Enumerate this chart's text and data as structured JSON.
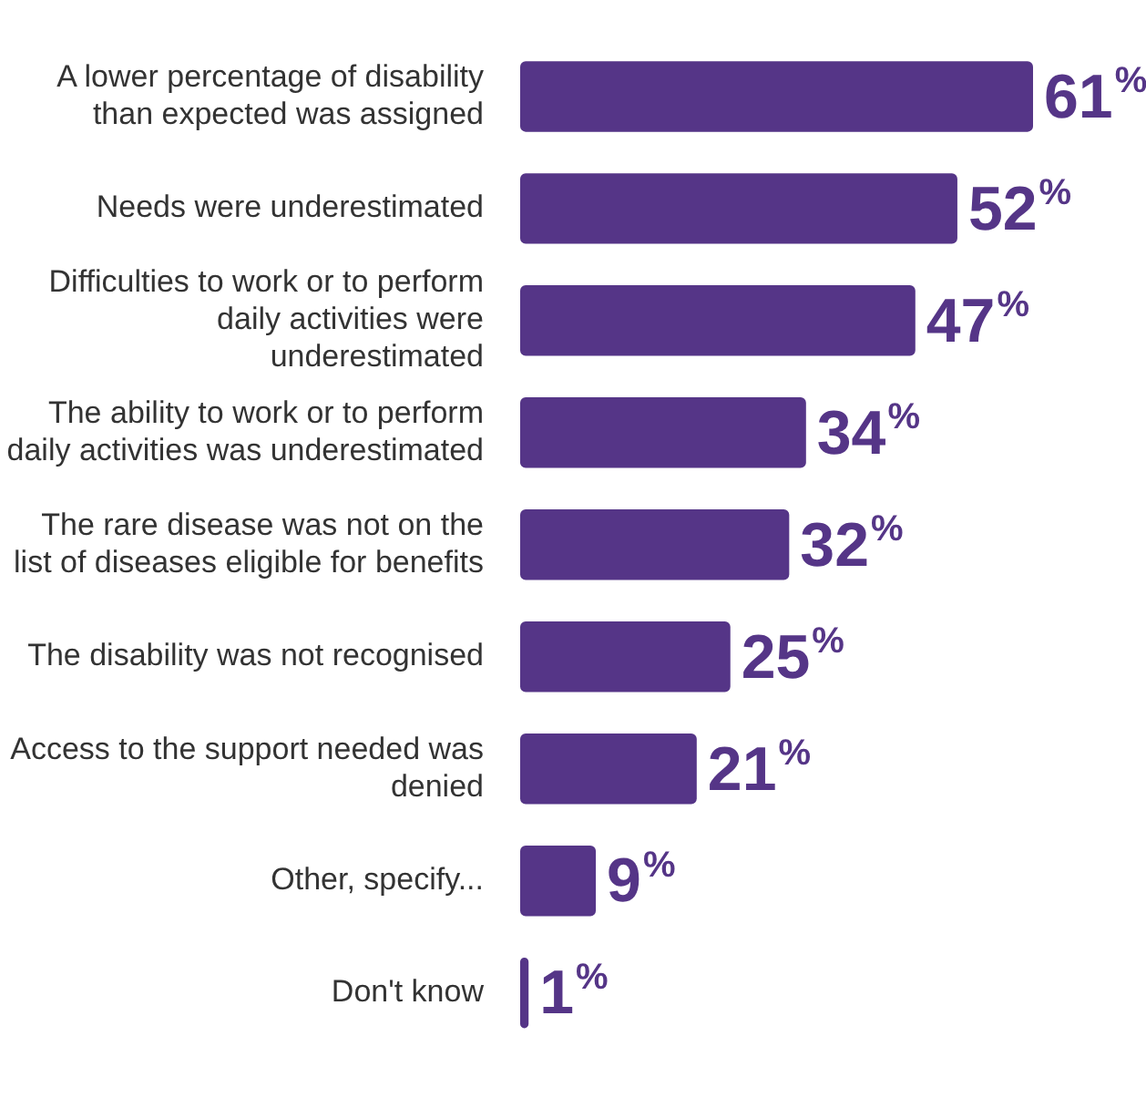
{
  "chart_data": {
    "type": "bar",
    "orientation": "horizontal",
    "categories": [
      "A lower percentage of disability than expected was assigned",
      "Needs were underestimated",
      "Difficulties to work or to perform daily activities were underestimated",
      "The ability to work or to perform daily activities was underestimated",
      "The rare disease was not on the list of diseases eligible for benefits",
      "The disability was not recognised",
      "Access to the support needed was denied",
      "Other, specify...",
      "Don't know"
    ],
    "values": [
      61,
      52,
      47,
      34,
      32,
      25,
      21,
      9,
      1
    ],
    "value_labels": [
      "61%",
      "52%",
      "47%",
      "34%",
      "32%",
      "25%",
      "21%",
      "9%",
      "1%"
    ],
    "color": "#553587",
    "tick_labels": "y",
    "legend": false
  }
}
